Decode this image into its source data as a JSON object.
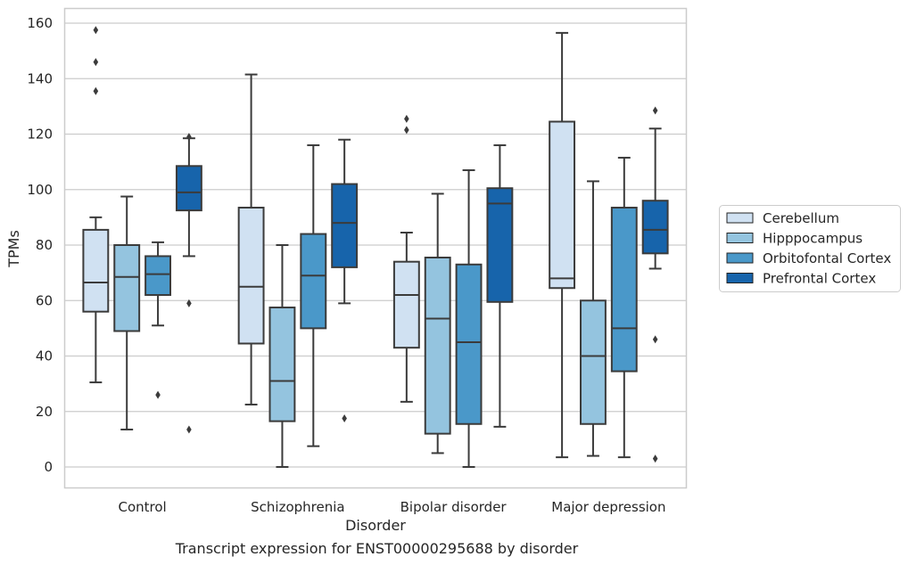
{
  "chart_data": {
    "type": "box",
    "title": "",
    "caption": "Transcript expression for ENST00000295688 by disorder",
    "xlabel": "Disorder",
    "ylabel": "TPMs",
    "ylim": [
      -8,
      165
    ],
    "yticks": [
      0,
      20,
      40,
      60,
      80,
      100,
      120,
      140,
      160
    ],
    "grid": "horizontal",
    "legend_position": "right",
    "categories": [
      "Control",
      "Schizophrenia",
      "Bipolar disorder",
      "Major depression"
    ],
    "series": [
      {
        "name": "Cerebellum",
        "color": "#d0e1f2",
        "boxes": [
          {
            "whisker_low": 30.5,
            "q1": 56,
            "median": 66.5,
            "q3": 85.5,
            "whisker_high": 90,
            "outliers": [
              135.5,
              146,
              157.5
            ]
          },
          {
            "whisker_low": 22.5,
            "q1": 44.5,
            "median": 65,
            "q3": 93.5,
            "whisker_high": 141.5,
            "outliers": []
          },
          {
            "whisker_low": 23.5,
            "q1": 43,
            "median": 62,
            "q3": 74,
            "whisker_high": 84.5,
            "outliers": [
              121.5,
              125.5
            ]
          },
          {
            "whisker_low": 3.5,
            "q1": 64.5,
            "median": 68,
            "q3": 124.5,
            "whisker_high": 156.5,
            "outliers": []
          }
        ]
      },
      {
        "name": "Hipppocampus",
        "color": "#94c4df",
        "boxes": [
          {
            "whisker_low": 13.5,
            "q1": 49,
            "median": 68.5,
            "q3": 80,
            "whisker_high": 97.5,
            "outliers": []
          },
          {
            "whisker_low": 0,
            "q1": 16.5,
            "median": 31,
            "q3": 57.5,
            "whisker_high": 80,
            "outliers": []
          },
          {
            "whisker_low": 5,
            "q1": 12,
            "median": 53.5,
            "q3": 75.5,
            "whisker_high": 98.5,
            "outliers": []
          },
          {
            "whisker_low": 4,
            "q1": 15.5,
            "median": 40,
            "q3": 60,
            "whisker_high": 103,
            "outliers": []
          }
        ]
      },
      {
        "name": "Orbitofontal Cortex",
        "color": "#4a98c9",
        "boxes": [
          {
            "whisker_low": 51,
            "q1": 62,
            "median": 69.5,
            "q3": 76,
            "whisker_high": 81,
            "outliers": [
              26
            ]
          },
          {
            "whisker_low": 7.5,
            "q1": 50,
            "median": 69,
            "q3": 84,
            "whisker_high": 116,
            "outliers": []
          },
          {
            "whisker_low": 0,
            "q1": 15.5,
            "median": 45,
            "q3": 73,
            "whisker_high": 107,
            "outliers": []
          },
          {
            "whisker_low": 3.5,
            "q1": 34.5,
            "median": 50,
            "q3": 93.5,
            "whisker_high": 111.5,
            "outliers": []
          }
        ]
      },
      {
        "name": "Prefrontal Cortex",
        "color": "#1764ab",
        "boxes": [
          {
            "whisker_low": 76,
            "q1": 92.5,
            "median": 99,
            "q3": 108.5,
            "whisker_high": 118.5,
            "outliers": [
              13.5,
              59,
              119
            ]
          },
          {
            "whisker_low": 59,
            "q1": 72,
            "median": 88,
            "q3": 102,
            "whisker_high": 118,
            "outliers": [
              17.5
            ]
          },
          {
            "whisker_low": 14.5,
            "q1": 59.5,
            "median": 95,
            "q3": 100.5,
            "whisker_high": 116,
            "outliers": []
          },
          {
            "whisker_low": 71.5,
            "q1": 77,
            "median": 85.5,
            "q3": 96,
            "whisker_high": 122,
            "outliers": [
              3,
              46,
              128.5
            ]
          }
        ]
      }
    ]
  }
}
